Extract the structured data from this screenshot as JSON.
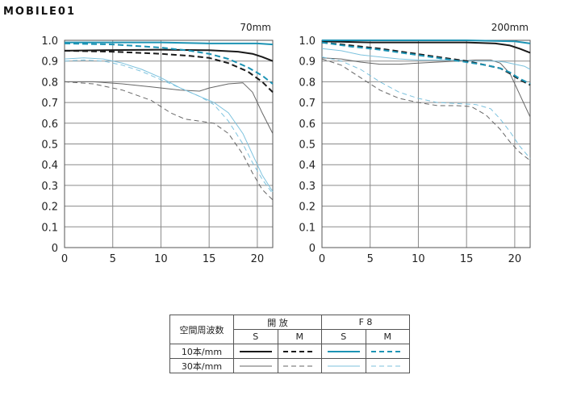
{
  "logo": {
    "text": "MOBILE01"
  },
  "legend": {
    "header_label": "空間周波数",
    "group_open": "開 放",
    "group_f8": "F 8",
    "sub_s": "S",
    "sub_m": "M",
    "row_10": "10本/mm",
    "row_30": "30本/mm"
  },
  "colors": {
    "open": "#1a1a1a",
    "f8": "#1c93b4",
    "open_30": "#666666",
    "f8_30": "#7cc2de",
    "grid": "#8a8a8a"
  },
  "chart_data": [
    {
      "type": "line",
      "title": "70mm",
      "xlim": [
        0,
        21.6
      ],
      "ylim": [
        0,
        1.0
      ],
      "x_ticks": [
        0,
        5,
        10,
        15,
        20
      ],
      "y_ticks": [
        "0",
        "0.1",
        "0.2",
        "0.3",
        "0.4",
        "0.5",
        "0.6",
        "0.7",
        "0.8",
        "0.9",
        "1.0"
      ],
      "grid": true,
      "series": [
        {
          "style": "open_10_s",
          "x": [
            0,
            5,
            10,
            15,
            18,
            19.5,
            20.5,
            21.6
          ],
          "y": [
            0.95,
            0.953,
            0.955,
            0.952,
            0.945,
            0.935,
            0.92,
            0.9
          ]
        },
        {
          "style": "open_10_m",
          "x": [
            0,
            5,
            10,
            13,
            15,
            17,
            19,
            20.5,
            21.6
          ],
          "y": [
            0.95,
            0.945,
            0.935,
            0.925,
            0.915,
            0.89,
            0.85,
            0.8,
            0.75
          ]
        },
        {
          "style": "f8_10_s",
          "x": [
            0,
            5,
            10,
            15,
            20,
            21.6
          ],
          "y": [
            0.99,
            0.99,
            0.99,
            0.985,
            0.985,
            0.98
          ]
        },
        {
          "style": "f8_10_m",
          "x": [
            0,
            5,
            10,
            13,
            15,
            17,
            19,
            20.5,
            21.6
          ],
          "y": [
            0.985,
            0.98,
            0.965,
            0.95,
            0.935,
            0.91,
            0.87,
            0.83,
            0.79
          ]
        },
        {
          "style": "open_30_s",
          "x": [
            0,
            3,
            6,
            9,
            12,
            14,
            15,
            17,
            18.5,
            19.5,
            20.5,
            21.6
          ],
          "y": [
            0.8,
            0.8,
            0.79,
            0.775,
            0.76,
            0.755,
            0.77,
            0.79,
            0.795,
            0.75,
            0.65,
            0.55
          ]
        },
        {
          "style": "open_30_m",
          "x": [
            0,
            3,
            6,
            9,
            11,
            12.5,
            14,
            15.5,
            17,
            18.5,
            19.5,
            20.5,
            21.6
          ],
          "y": [
            0.8,
            0.79,
            0.76,
            0.71,
            0.65,
            0.62,
            0.61,
            0.6,
            0.55,
            0.45,
            0.36,
            0.28,
            0.23
          ]
        },
        {
          "style": "f8_30_s",
          "x": [
            0,
            2,
            4,
            6,
            8,
            10,
            12,
            14,
            15.5,
            17,
            18.5,
            19.5,
            20.5,
            21.6
          ],
          "y": [
            0.91,
            0.915,
            0.91,
            0.89,
            0.86,
            0.82,
            0.77,
            0.73,
            0.7,
            0.65,
            0.55,
            0.45,
            0.35,
            0.27
          ]
        },
        {
          "style": "f8_30_m",
          "x": [
            0,
            2,
            4,
            6,
            8,
            10,
            12,
            14,
            15.5,
            17,
            18.5,
            19.5,
            20.5,
            21.6
          ],
          "y": [
            0.9,
            0.905,
            0.9,
            0.88,
            0.85,
            0.81,
            0.77,
            0.73,
            0.69,
            0.61,
            0.5,
            0.41,
            0.33,
            0.26
          ]
        }
      ]
    },
    {
      "type": "line",
      "title": "200mm",
      "xlim": [
        0,
        21.6
      ],
      "ylim": [
        0,
        1.0
      ],
      "x_ticks": [
        0,
        5,
        10,
        15,
        20
      ],
      "y_ticks": [
        "0",
        "0.1",
        "0.2",
        "0.3",
        "0.4",
        "0.5",
        "0.6",
        "0.7",
        "0.8",
        "0.9",
        "1.0"
      ],
      "grid": true,
      "series": [
        {
          "style": "open_10_s",
          "x": [
            0,
            5,
            10,
            15,
            18,
            19.5,
            20.5,
            21.6
          ],
          "y": [
            0.995,
            0.99,
            0.99,
            0.99,
            0.985,
            0.975,
            0.96,
            0.94
          ]
        },
        {
          "style": "open_10_m",
          "x": [
            0,
            3,
            6,
            9,
            12,
            15,
            17,
            18.5,
            19.5,
            20.5,
            21.6
          ],
          "y": [
            0.99,
            0.975,
            0.96,
            0.94,
            0.92,
            0.9,
            0.88,
            0.865,
            0.84,
            0.81,
            0.785
          ]
        },
        {
          "style": "f8_10_s",
          "x": [
            0,
            5,
            10,
            15,
            20,
            21.6
          ],
          "y": [
            1.0,
            1.0,
            1.0,
            1.0,
            0.995,
            0.985
          ]
        },
        {
          "style": "f8_10_m",
          "x": [
            0,
            3,
            6,
            9,
            12,
            15,
            17,
            18.5,
            19.5,
            20.5,
            21.6
          ],
          "y": [
            0.99,
            0.97,
            0.955,
            0.935,
            0.915,
            0.895,
            0.88,
            0.865,
            0.845,
            0.815,
            0.79
          ]
        },
        {
          "style": "open_30_s",
          "x": [
            0,
            2,
            4,
            6,
            8,
            10,
            12,
            14,
            16,
            17.5,
            18.5,
            19.5,
            20.5,
            21.6
          ],
          "y": [
            0.915,
            0.91,
            0.895,
            0.885,
            0.885,
            0.89,
            0.895,
            0.9,
            0.905,
            0.905,
            0.89,
            0.84,
            0.74,
            0.63
          ]
        },
        {
          "style": "open_30_m",
          "x": [
            0,
            2,
            4,
            6,
            8,
            10,
            12,
            14,
            15.5,
            17,
            18.5,
            19.5,
            20.5,
            21.6
          ],
          "y": [
            0.91,
            0.88,
            0.82,
            0.76,
            0.72,
            0.7,
            0.685,
            0.685,
            0.68,
            0.64,
            0.57,
            0.51,
            0.46,
            0.42
          ]
        },
        {
          "style": "f8_30_s",
          "x": [
            0,
            2,
            4,
            6,
            8,
            10,
            12,
            14,
            16,
            18,
            19,
            20,
            21,
            21.6
          ],
          "y": [
            0.96,
            0.95,
            0.93,
            0.92,
            0.91,
            0.905,
            0.905,
            0.905,
            0.9,
            0.9,
            0.895,
            0.885,
            0.875,
            0.86
          ]
        },
        {
          "style": "f8_30_m",
          "x": [
            0,
            2,
            4,
            6,
            8,
            10,
            12,
            14,
            16,
            17.5,
            18.5,
            19.5,
            20.5,
            21.6
          ],
          "y": [
            0.92,
            0.9,
            0.86,
            0.8,
            0.75,
            0.72,
            0.7,
            0.695,
            0.69,
            0.67,
            0.62,
            0.56,
            0.49,
            0.43
          ]
        }
      ]
    }
  ]
}
